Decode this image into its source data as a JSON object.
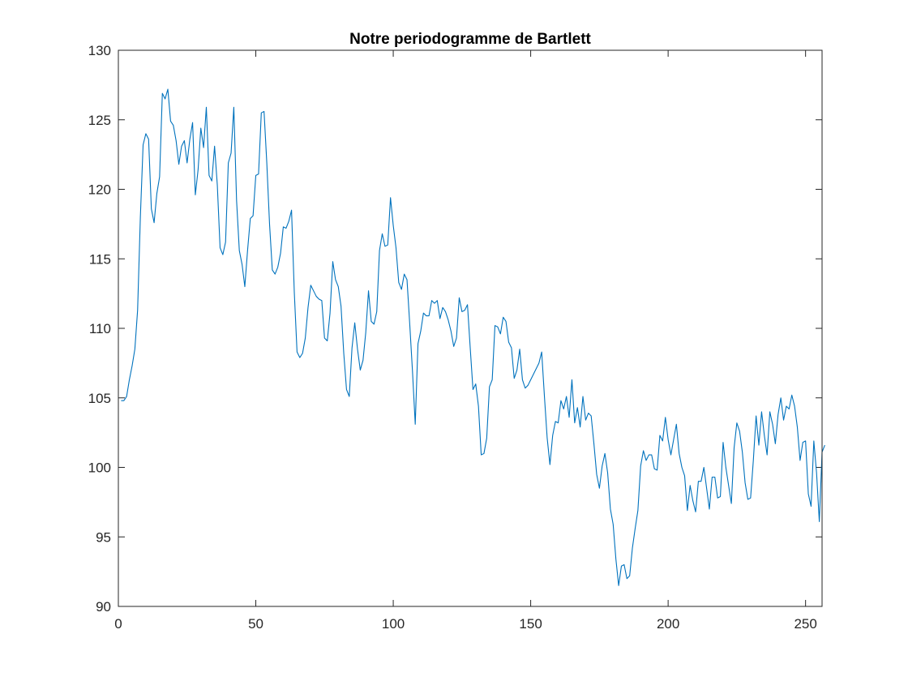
{
  "chart_data": {
    "type": "line",
    "title": "Notre periodogramme de Bartlett",
    "xlabel": "",
    "ylabel": "",
    "xlim": [
      0,
      256
    ],
    "ylim": [
      90,
      130
    ],
    "x_ticks": [
      0,
      50,
      100,
      150,
      200,
      250
    ],
    "y_ticks": [
      90,
      95,
      100,
      105,
      110,
      115,
      120,
      125,
      130
    ],
    "grid": false,
    "legend": "none",
    "line_color": "#0072BD",
    "series": [
      {
        "x_start": 1,
        "x_step": 1,
        "values": [
          104.8,
          104.8,
          105.1,
          106.3,
          107.3,
          108.5,
          111.3,
          118.0,
          123.2,
          124.0,
          123.6,
          118.6,
          117.6,
          119.7,
          120.9,
          126.9,
          126.5,
          127.2,
          124.9,
          124.6,
          123.5,
          121.8,
          123.1,
          123.5,
          121.9,
          123.6,
          124.8,
          119.6,
          121.4,
          124.4,
          123.0,
          125.9,
          121.0,
          120.6,
          123.1,
          120.3,
          115.8,
          115.3,
          116.2,
          121.9,
          122.6,
          125.9,
          119.2,
          115.6,
          114.6,
          113.0,
          115.6,
          117.9,
          118.1,
          121.0,
          121.1,
          125.5,
          125.6,
          121.9,
          117.5,
          114.2,
          113.9,
          114.4,
          115.4,
          117.3,
          117.2,
          117.7,
          118.5,
          112.6,
          108.3,
          107.9,
          108.2,
          109.3,
          111.5,
          113.1,
          112.7,
          112.3,
          112.1,
          112.0,
          109.3,
          109.1,
          111.1,
          114.8,
          113.5,
          113.0,
          111.6,
          108.2,
          105.6,
          105.1,
          108.6,
          110.4,
          108.5,
          107.0,
          107.7,
          109.7,
          112.7,
          110.5,
          110.3,
          111.2,
          115.6,
          116.8,
          115.9,
          116.0,
          119.4,
          117.4,
          115.8,
          113.3,
          112.8,
          113.9,
          113.5,
          110.3,
          106.9,
          103.1,
          108.9,
          109.8,
          111.1,
          110.9,
          110.9,
          112.0,
          111.8,
          112.0,
          110.7,
          111.5,
          111.2,
          110.6,
          109.8,
          108.7,
          109.3,
          112.2,
          111.2,
          111.3,
          111.7,
          108.6,
          105.6,
          106.0,
          104.4,
          100.9,
          101.0,
          102.1,
          105.8,
          106.3,
          110.2,
          110.1,
          109.6,
          110.8,
          110.5,
          109.0,
          108.6,
          106.4,
          107.0,
          108.5,
          106.3,
          105.7,
          105.9,
          106.3,
          106.7,
          107.1,
          107.5,
          108.3,
          105.1,
          102.1,
          100.2,
          102.3,
          103.3,
          103.2,
          104.8,
          104.2,
          105.1,
          103.6,
          106.3,
          103.2,
          104.3,
          102.9,
          105.1,
          103.4,
          103.9,
          103.7,
          101.7,
          99.5,
          98.5,
          100.1,
          101.0,
          99.6,
          97.0,
          95.9,
          93.4,
          91.5,
          92.9,
          93.0,
          92.0,
          92.2,
          94.2,
          95.6,
          96.9,
          100.1,
          101.2,
          100.5,
          100.9,
          100.9,
          99.9,
          99.8,
          102.3,
          101.9,
          103.6,
          102.0,
          100.9,
          102.0,
          103.1,
          101.0,
          100.0,
          99.4,
          96.9,
          98.7,
          97.6,
          96.8,
          99.0,
          99.0,
          100.0,
          98.5,
          97.0,
          99.3,
          99.3,
          97.8,
          97.9,
          101.8,
          100.0,
          98.7,
          97.4,
          101.4,
          103.2,
          102.6,
          101.1,
          98.9,
          97.7,
          97.8,
          100.5,
          103.7,
          101.6,
          104.0,
          102.3,
          100.9,
          104.0,
          103.1,
          101.7,
          103.8,
          105.0,
          103.4,
          104.4,
          104.2,
          105.2,
          104.4,
          102.9,
          100.5,
          101.8,
          101.9,
          98.1,
          97.2,
          101.9,
          99.6,
          96.1,
          101.1,
          101.6
        ]
      }
    ]
  }
}
